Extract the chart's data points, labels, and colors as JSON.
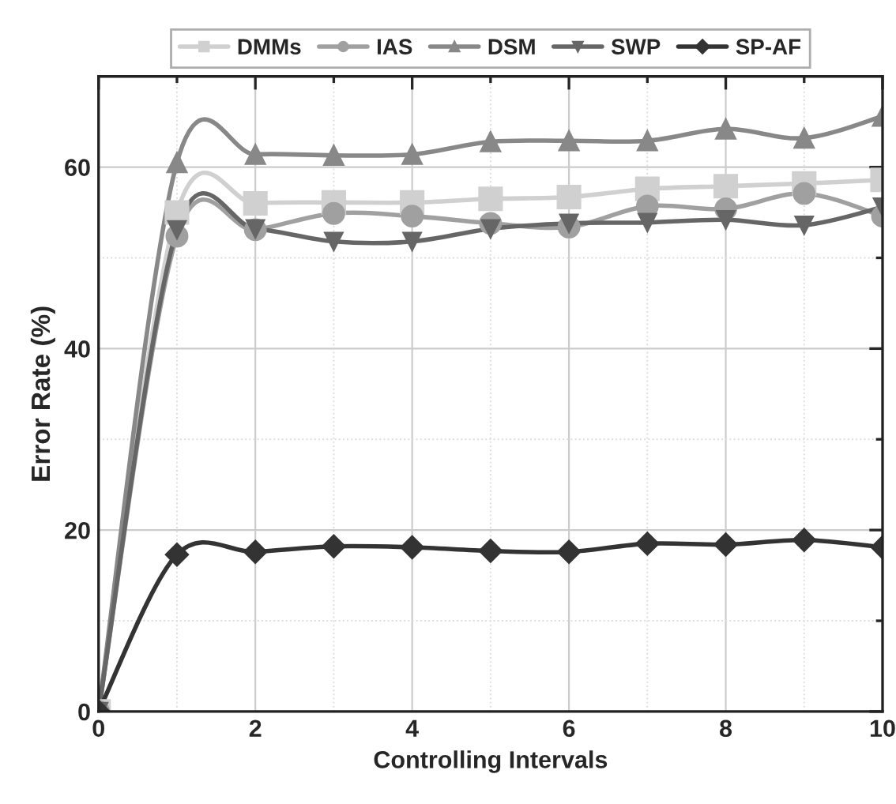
{
  "chart_data": {
    "type": "line",
    "xlabel": "Controlling Intervals",
    "ylabel": "Error Rate (%)",
    "x": [
      0,
      1,
      2,
      3,
      4,
      5,
      6,
      7,
      8,
      9,
      10
    ],
    "xlim": [
      0,
      10
    ],
    "xticks": [
      0,
      2,
      4,
      6,
      8,
      10
    ],
    "ylim": [
      0,
      70
    ],
    "yticks": [
      0,
      20,
      40,
      60
    ],
    "grid": true,
    "legend": "top",
    "line_style": "solid",
    "series": [
      {
        "name": "DMMs",
        "color": "#d0d0d0",
        "marker": "square",
        "values": [
          0,
          55.0,
          56.0,
          56.1,
          56.1,
          56.5,
          56.7,
          57.6,
          57.9,
          58.2,
          58.6
        ]
      },
      {
        "name": "IAS",
        "color": "#a0a0a0",
        "marker": "circle",
        "values": [
          0,
          52.4,
          53.1,
          54.9,
          54.6,
          53.8,
          53.4,
          55.7,
          55.4,
          57.1,
          54.6
        ]
      },
      {
        "name": "DSM",
        "color": "#888888",
        "marker": "triangle",
        "values": [
          0,
          60.5,
          61.4,
          61.3,
          61.4,
          62.8,
          62.9,
          62.9,
          64.2,
          63.2,
          65.6
        ]
      },
      {
        "name": "SWP",
        "color": "#666666",
        "marker": "triangle_down",
        "values": [
          0,
          53.1,
          53.2,
          51.8,
          51.8,
          53.2,
          53.8,
          53.9,
          54.2,
          53.6,
          55.6
        ]
      },
      {
        "name": "SP-AF",
        "color": "#333333",
        "marker": "diamond",
        "values": [
          0,
          17.3,
          17.6,
          18.2,
          18.1,
          17.7,
          17.6,
          18.5,
          18.4,
          18.9,
          18.1
        ]
      }
    ]
  }
}
